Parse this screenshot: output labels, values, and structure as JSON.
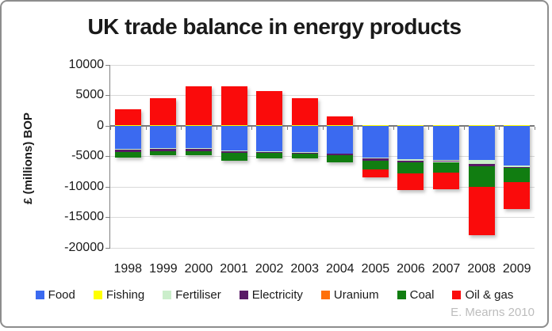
{
  "attribution": "E. Mearns 2010",
  "chart_data": {
    "type": "bar",
    "stacked": true,
    "title": "UK trade balance in energy products",
    "ylabel": "£ (millions) BOP",
    "xlabel": "",
    "ylim": [
      -20000,
      10000
    ],
    "ytick_step": 5000,
    "grid": true,
    "legend_position": "bottom",
    "categories": [
      "1998",
      "1999",
      "2000",
      "2001",
      "2002",
      "2003",
      "2004",
      "2005",
      "2006",
      "2007",
      "2008",
      "2009"
    ],
    "series": [
      {
        "name": "Food",
        "color": "#3B6AF0",
        "values": [
          -3800,
          -3700,
          -3700,
          -4100,
          -4250,
          -4350,
          -4550,
          -5200,
          -5550,
          -5650,
          -5600,
          -6550
        ]
      },
      {
        "name": "Fishing",
        "color": "#FFFF00",
        "values": [
          100,
          100,
          100,
          100,
          100,
          100,
          100,
          100,
          100,
          100,
          150,
          100
        ]
      },
      {
        "name": "Fertiliser",
        "color": "#CBEECB",
        "values": [
          -150,
          -150,
          -150,
          -150,
          -100,
          -100,
          -100,
          -150,
          -150,
          -100,
          -650,
          -200
        ]
      },
      {
        "name": "Electricity",
        "color": "#591A66",
        "values": [
          -350,
          -350,
          -350,
          -250,
          -150,
          -150,
          -200,
          -350,
          -300,
          -200,
          -450,
          -150
        ]
      },
      {
        "name": "Uranium",
        "color": "#FF700A",
        "values": [
          0,
          0,
          0,
          0,
          0,
          0,
          0,
          0,
          0,
          0,
          0,
          0
        ]
      },
      {
        "name": "Coal",
        "color": "#117D11",
        "values": [
          -900,
          -650,
          -650,
          -1300,
          -850,
          -750,
          -1150,
          -1500,
          -1850,
          -1800,
          -3350,
          -2300
        ]
      },
      {
        "name": "Oil & gas",
        "color": "#FA0B0B",
        "values": [
          2600,
          4400,
          6300,
          6400,
          5600,
          4400,
          1400,
          -1300,
          -2700,
          -2700,
          -7900,
          -4450
        ]
      }
    ]
  }
}
